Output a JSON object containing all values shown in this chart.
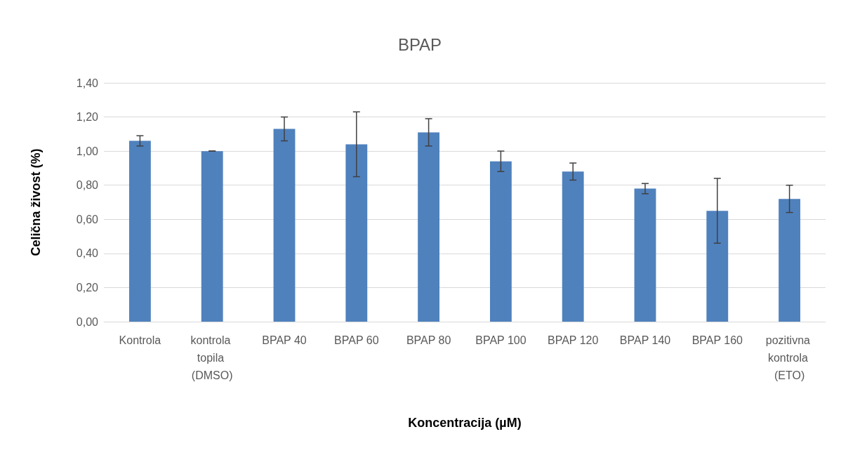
{
  "chart_data": {
    "type": "bar",
    "title": "BPAP",
    "xlabel": "Koncentracija (µM)",
    "ylabel": "Celična živost (%)",
    "categories": [
      "Kontrola",
      "kontrola topila (DMSO)",
      "BPAP 40",
      "BPAP 60",
      "BPAP 80",
      "BPAP 100",
      "BPAP 120",
      "BPAP 140",
      "BPAP 160",
      "pozitivna kontrola (ETO)"
    ],
    "values": [
      1.06,
      1.0,
      1.13,
      1.04,
      1.11,
      0.94,
      0.88,
      0.78,
      0.65,
      0.72
    ],
    "errors": [
      0.03,
      0,
      0.07,
      0.19,
      0.08,
      0.06,
      0.05,
      0.03,
      0.19,
      0.08
    ],
    "color": "#4f81bd",
    "ylim": [
      0,
      1.4
    ],
    "yticks": [
      {
        "value": 0,
        "label": "0,00"
      },
      {
        "value": 0.2,
        "label": "0,20"
      },
      {
        "value": 0.4,
        "label": "0,40"
      },
      {
        "value": 0.6,
        "label": "0,60"
      },
      {
        "value": 0.8,
        "label": "0,80"
      },
      {
        "value": 1.0,
        "label": "1,00"
      },
      {
        "value": 1.2,
        "label": "1,20"
      },
      {
        "value": 1.4,
        "label": "1,40"
      }
    ],
    "grid": "y"
  }
}
